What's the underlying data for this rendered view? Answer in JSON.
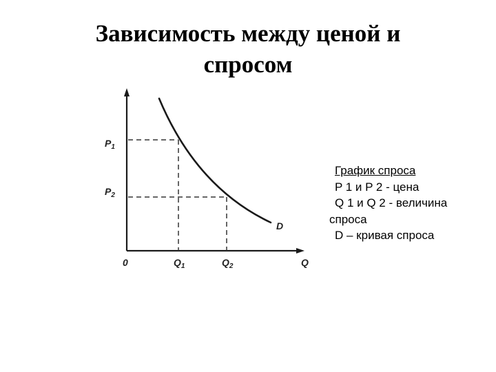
{
  "title": {
    "line1": "Зависимость между ценой и",
    "line2": "спросом"
  },
  "diagram": {
    "labels": {
      "p1": "P",
      "p1_sub": "1",
      "p2": "P",
      "p2_sub": "2",
      "origin": "0",
      "q1": "Q",
      "q1_sub": "1",
      "q2": "Q",
      "q2_sub": "2",
      "q_axis": "Q",
      "curve": "D"
    },
    "colors": {
      "axis": "#1a1a1a",
      "curve": "#1a1a1a",
      "guides": "#333333"
    }
  },
  "legend": {
    "heading": "График спроса ",
    "line1": "P 1 и P 2 - цена",
    "line2a": "Q 1 и Q 2 - величина",
    "line2b": "спроса",
    "line3": "D – кривая спроса"
  }
}
